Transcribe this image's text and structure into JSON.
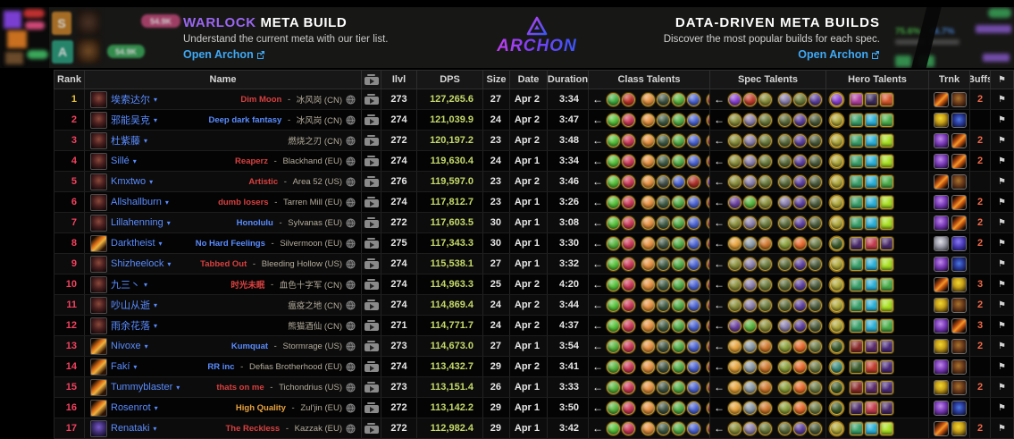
{
  "header": {
    "left": {
      "title_accent": "WARLOCK",
      "title_rest": "META BUILD",
      "subtitle": "Understand the current meta with our tier list.",
      "link_label": "Open Archon"
    },
    "logo": {
      "brand": "ARCHON"
    },
    "right": {
      "title": "DATA-DRIVEN META BUILDS",
      "subtitle": "Discover the most popular builds for each spec.",
      "link_label": "Open Archon"
    },
    "bg": {
      "tier_s": "S",
      "tier_a": "A",
      "pill_pink": "54.9K",
      "pill_green": "54.9K",
      "stat_green": "75.6%",
      "stat_blue": "46.7%"
    }
  },
  "table": {
    "columns": {
      "rank": "Rank",
      "name": "Name",
      "ilvl": "Ilvl",
      "dps": "DPS",
      "size": "Size",
      "date": "Date",
      "duration": "Duration",
      "class_talents": "Class Talents",
      "spec_talents": "Spec Talents",
      "hero_talents": "Hero Talents",
      "trnk": "Trnk",
      "buffs": "Buffs"
    },
    "colors": {
      "guild_red": "#d84040",
      "guild_blue": "#5a8cff",
      "guild_gold": "#e8a33d",
      "rank_first": "#e8c23a",
      "rank_other": "#f2415f",
      "dps": "#c5d96a",
      "buffs": "#ef6a4a",
      "name": "#5a8cff",
      "realm": "#b3ab9b"
    },
    "palettes": {
      "class": {
        "demo1": [
          "#3fae3f",
          "#c03028",
          "#e8913f",
          "#3f5444",
          "#56b43c",
          "#4a63d4",
          "#ad2a2a",
          "#9038cc"
        ],
        "demo": [
          "#55c238",
          "#cc3557",
          "#e8913f",
          "#3f5a44",
          "#4fae46",
          "#4a63d4",
          "#ad2a2a",
          "#9038cc"
        ],
        "demo5": [
          "#55c238",
          "#cc3557",
          "#e8913f",
          "#44504a",
          "#4a63d4",
          "#b03028",
          "#7a38cc",
          "#c8a23a"
        ],
        "destro": [
          "#56b43c",
          "#cc3557",
          "#e8913f",
          "#3f5444",
          "#4fae46",
          "#4a63d4",
          "#ad2a2a",
          "#9038cc"
        ]
      },
      "spec": {
        "r1": [
          "#8a3fd4",
          "#c23b2e",
          "#8a8f3a",
          "#8a7fae",
          "#6a7a3a",
          "#5b3fa0",
          "#6a7a46"
        ],
        "demo": [
          "#8a8f3a",
          "#8a7fae",
          "#6a7a3a",
          "#5a6a3a",
          "#5b3fa0",
          "#4a5a3a",
          "#6a7a46"
        ],
        "demo6": [
          "#6a3fa0",
          "#56b43c",
          "#8a8f3a",
          "#8a7fae",
          "#5b3fa0",
          "#4a5a3a",
          "#6a7a46"
        ],
        "destro": [
          "#e8a23a",
          "#8a9aa8",
          "#d0762a",
          "#8aa03a",
          "#e8682a",
          "#6a7a46",
          "#d4542a"
        ]
      },
      "hero": {
        "r1": [
          "#8a3fd4",
          "#b03fa0",
          "#3a2a5a",
          "#d4552a"
        ],
        "lime": [
          "#b0a83a",
          "#3aa06a",
          "#2ab0d8",
          "#a8e020"
        ],
        "green": [
          "#b0a83a",
          "#3aa06a",
          "#2ab0d8",
          "#4aae4a"
        ],
        "dark": [
          "#3a5a2a",
          "#4a2a6a",
          "#c23b4e",
          "#4a2a6a"
        ],
        "dark2": [
          "#3a5a2a",
          "#8a2a2a",
          "#5a2a6a",
          "#4a2a7a"
        ],
        "teal": [
          "#3a8a7a",
          "#3a5a2a",
          "#c23b2e",
          "#4a2a7a"
        ]
      }
    },
    "rows": [
      {
        "rank": "1",
        "name": "埃索达尔",
        "guild": "Dim Moon",
        "guild_color": "red",
        "realm": "冰风岗 (CN)",
        "ilvl": "273",
        "dps": "127,265.6",
        "size": "27",
        "date": "Apr 2",
        "duration": "3:34",
        "buffs": "2",
        "avatar": "demonology",
        "trinkets": [
          "flame",
          "fiend"
        ],
        "class_palette": "demo1",
        "spec_palette": "r1",
        "hero_palette": "r1"
      },
      {
        "rank": "2",
        "name": "邪能吴克",
        "guild": "Deep dark fantasy",
        "guild_color": "blue",
        "realm": "冰风岗 (CN)",
        "ilvl": "274",
        "dps": "121,039.9",
        "size": "24",
        "date": "Apr 2",
        "duration": "3:47",
        "buffs": "",
        "avatar": "demonology",
        "trinkets": [
          "bottle",
          "swirl"
        ],
        "class_palette": "demo",
        "spec_palette": "demo",
        "hero_palette": "green"
      },
      {
        "rank": "3",
        "name": "杜紫藤",
        "guild": "",
        "guild_color": "",
        "realm": "燃烧之刃 (CN)",
        "ilvl": "272",
        "dps": "120,197.2",
        "size": "23",
        "date": "Apr 2",
        "duration": "3:48",
        "buffs": "2",
        "avatar": "demonology",
        "trinkets": [
          "orb",
          "flame"
        ],
        "class_palette": "demo",
        "spec_palette": "demo",
        "hero_palette": "lime"
      },
      {
        "rank": "4",
        "name": "Sillé",
        "guild": "Reaperz",
        "guild_color": "red",
        "realm": "Blackhand (EU)",
        "ilvl": "274",
        "dps": "119,630.4",
        "size": "24",
        "date": "Apr 1",
        "duration": "3:34",
        "buffs": "2",
        "avatar": "demonology",
        "trinkets": [
          "orb",
          "flame"
        ],
        "class_palette": "demo",
        "spec_palette": "demo",
        "hero_palette": "lime"
      },
      {
        "rank": "5",
        "name": "Kmxtwo",
        "guild": "Artistic",
        "guild_color": "red",
        "realm": "Area 52 (US)",
        "ilvl": "276",
        "dps": "119,597.0",
        "size": "23",
        "date": "Apr 2",
        "duration": "3:46",
        "buffs": "",
        "avatar": "demonology",
        "trinkets": [
          "flame",
          "fiend"
        ],
        "class_palette": "demo5",
        "spec_palette": "demo",
        "hero_palette": "green"
      },
      {
        "rank": "6",
        "name": "Allshallburn",
        "guild": "dumb losers",
        "guild_color": "red",
        "realm": "Tarren Mill (EU)",
        "ilvl": "274",
        "dps": "117,812.7",
        "size": "23",
        "date": "Apr 1",
        "duration": "3:26",
        "buffs": "2",
        "avatar": "demonology",
        "trinkets": [
          "orb",
          "flame"
        ],
        "class_palette": "demo",
        "spec_palette": "demo6",
        "hero_palette": "lime"
      },
      {
        "rank": "7",
        "name": "Lillahenning",
        "guild": "Honolulu",
        "guild_color": "blue",
        "realm": "Sylvanas (EU)",
        "ilvl": "272",
        "dps": "117,603.5",
        "size": "30",
        "date": "Apr 1",
        "duration": "3:08",
        "buffs": "2",
        "avatar": "demonology",
        "trinkets": [
          "orb",
          "flame"
        ],
        "class_palette": "demo",
        "spec_palette": "demo",
        "hero_palette": "lime"
      },
      {
        "rank": "8",
        "name": "Darktheist",
        "guild": "No Hard Feelings",
        "guild_color": "blue",
        "realm": "Silvermoon (EU)",
        "ilvl": "275",
        "dps": "117,343.3",
        "size": "30",
        "date": "Apr 1",
        "duration": "3:30",
        "buffs": "2",
        "avatar": "destruction",
        "trinkets": [
          "grey",
          "card"
        ],
        "class_palette": "destro",
        "spec_palette": "destro",
        "hero_palette": "dark"
      },
      {
        "rank": "9",
        "name": "Shizheelock",
        "guild": "Tabbed Out",
        "guild_color": "red",
        "realm": "Bleeding Hollow (US)",
        "ilvl": "274",
        "dps": "115,538.1",
        "size": "27",
        "date": "Apr 1",
        "duration": "3:32",
        "buffs": "",
        "avatar": "demonology",
        "trinkets": [
          "orb",
          "swirl"
        ],
        "class_palette": "demo",
        "spec_palette": "demo",
        "hero_palette": "lime"
      },
      {
        "rank": "10",
        "name": "九三丶",
        "guild": "时光未眠",
        "guild_color": "red",
        "realm": "血色十字军 (CN)",
        "ilvl": "274",
        "dps": "114,963.3",
        "size": "25",
        "date": "Apr 2",
        "duration": "4:20",
        "buffs": "3",
        "avatar": "demonology",
        "trinkets": [
          "flame",
          "bottle"
        ],
        "class_palette": "demo",
        "spec_palette": "demo",
        "hero_palette": "green"
      },
      {
        "rank": "11",
        "name": "吵山从逝",
        "guild": "",
        "guild_color": "",
        "realm": "瘟疫之地 (CN)",
        "ilvl": "274",
        "dps": "114,869.4",
        "size": "24",
        "date": "Apr 2",
        "duration": "3:44",
        "buffs": "2",
        "avatar": "demonology",
        "trinkets": [
          "bottle",
          "fiend"
        ],
        "class_palette": "demo",
        "spec_palette": "demo",
        "hero_palette": "lime"
      },
      {
        "rank": "12",
        "name": "雨余花落",
        "guild": "",
        "guild_color": "",
        "realm": "熊猫酒仙 (CN)",
        "ilvl": "271",
        "dps": "114,771.7",
        "size": "24",
        "date": "Apr 2",
        "duration": "4:37",
        "buffs": "3",
        "avatar": "demonology",
        "trinkets": [
          "orb",
          "flame"
        ],
        "class_palette": "demo",
        "spec_palette": "demo6",
        "hero_palette": "green"
      },
      {
        "rank": "13",
        "name": "Nivoxe",
        "guild": "Kumquat",
        "guild_color": "blue",
        "realm": "Stormrage (US)",
        "ilvl": "273",
        "dps": "114,673.0",
        "size": "27",
        "date": "Apr 1",
        "duration": "3:54",
        "buffs": "2",
        "avatar": "destruction",
        "trinkets": [
          "bottle",
          "fiend"
        ],
        "class_palette": "destro",
        "spec_palette": "destro",
        "hero_palette": "dark2"
      },
      {
        "rank": "14",
        "name": "Fakí",
        "guild": "RR inc",
        "guild_color": "blue",
        "realm": "Defias Brotherhood (EU)",
        "ilvl": "274",
        "dps": "113,432.7",
        "size": "29",
        "date": "Apr 2",
        "duration": "3:41",
        "buffs": "",
        "avatar": "destruction",
        "trinkets": [
          "orb",
          "fiend"
        ],
        "class_palette": "destro",
        "spec_palette": "destro",
        "hero_palette": "teal"
      },
      {
        "rank": "15",
        "name": "Tummyblaster",
        "guild": "thats on me",
        "guild_color": "red",
        "realm": "Tichondrius (US)",
        "ilvl": "273",
        "dps": "113,151.4",
        "size": "26",
        "date": "Apr 1",
        "duration": "3:33",
        "buffs": "2",
        "avatar": "destruction",
        "trinkets": [
          "bottle",
          "fiend"
        ],
        "class_palette": "destro",
        "spec_palette": "destro",
        "hero_palette": "dark2"
      },
      {
        "rank": "16",
        "name": "Rosenrot",
        "guild": "High Quality",
        "guild_color": "gold",
        "realm": "Zul'jin (EU)",
        "ilvl": "272",
        "dps": "113,142.2",
        "size": "29",
        "date": "Apr 1",
        "duration": "3:50",
        "buffs": "",
        "avatar": "destruction",
        "trinkets": [
          "orb",
          "swirl"
        ],
        "class_palette": "destro",
        "spec_palette": "destro",
        "hero_palette": "dark"
      },
      {
        "rank": "17",
        "name": "Renataki",
        "guild": "The Reckless",
        "guild_color": "red",
        "realm": "Kazzak (EU)",
        "ilvl": "272",
        "dps": "112,982.4",
        "size": "29",
        "date": "Apr 1",
        "duration": "3:42",
        "buffs": "2",
        "avatar": "affliction",
        "trinkets": [
          "flame",
          "bottle"
        ],
        "class_palette": "demo",
        "spec_palette": "demo",
        "hero_palette": "lime"
      }
    ]
  }
}
